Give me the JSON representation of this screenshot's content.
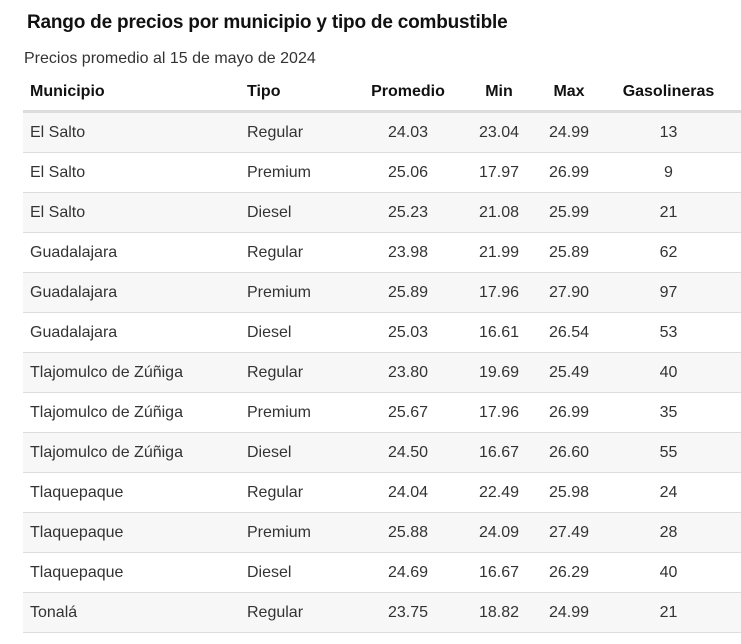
{
  "title": "Rango de precios por municipio y tipo de combustible",
  "subtitle": "Precios promedio al 15 de mayo de 2024",
  "table": {
    "headers": [
      "Municipio",
      "Tipo",
      "Promedio",
      "Min",
      "Max",
      "Gasolineras"
    ],
    "rows": [
      [
        "El Salto",
        "Regular",
        "24.03",
        "23.04",
        "24.99",
        "13"
      ],
      [
        "El Salto",
        "Premium",
        "25.06",
        "17.97",
        "26.99",
        "9"
      ],
      [
        "El Salto",
        "Diesel",
        "25.23",
        "21.08",
        "25.99",
        "21"
      ],
      [
        "Guadalajara",
        "Regular",
        "23.98",
        "21.99",
        "25.89",
        "62"
      ],
      [
        "Guadalajara",
        "Premium",
        "25.89",
        "17.96",
        "27.90",
        "97"
      ],
      [
        "Guadalajara",
        "Diesel",
        "25.03",
        "16.61",
        "26.54",
        "53"
      ],
      [
        "Tlajomulco de Zúñiga",
        "Regular",
        "23.80",
        "19.69",
        "25.49",
        "40"
      ],
      [
        "Tlajomulco de Zúñiga",
        "Premium",
        "25.67",
        "17.96",
        "26.99",
        "35"
      ],
      [
        "Tlajomulco de Zúñiga",
        "Diesel",
        "24.50",
        "16.67",
        "26.60",
        "55"
      ],
      [
        "Tlaquepaque",
        "Regular",
        "24.04",
        "22.49",
        "25.98",
        "24"
      ],
      [
        "Tlaquepaque",
        "Premium",
        "25.88",
        "24.09",
        "27.49",
        "28"
      ],
      [
        "Tlaquepaque",
        "Diesel",
        "24.69",
        "16.67",
        "26.29",
        "40"
      ],
      [
        "Tonalá",
        "Regular",
        "23.75",
        "18.82",
        "24.99",
        "21"
      ]
    ]
  }
}
